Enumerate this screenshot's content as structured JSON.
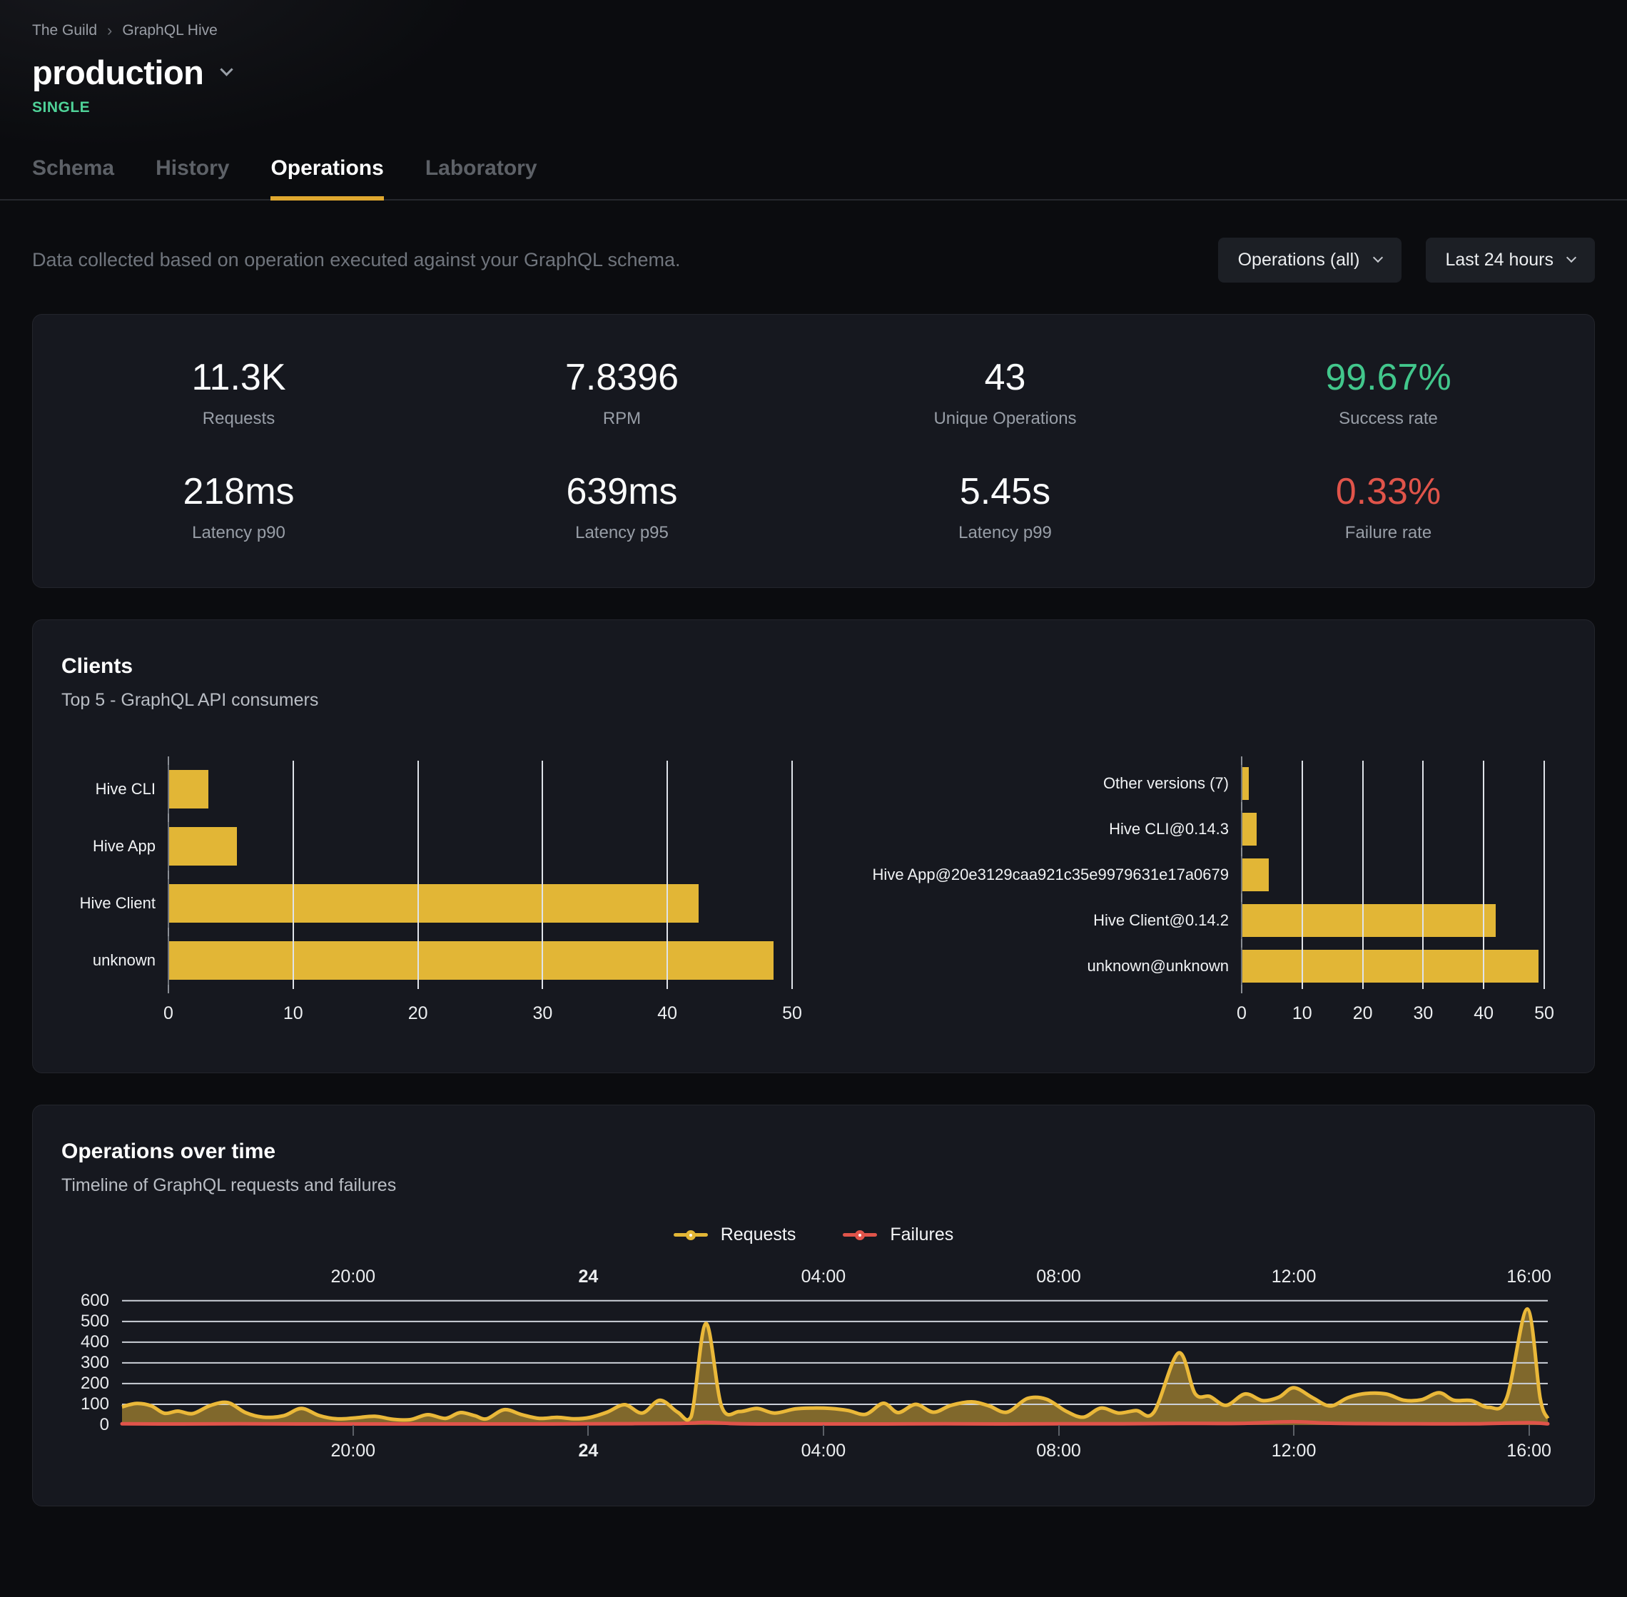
{
  "breadcrumb": {
    "org": "The Guild",
    "separator": "›",
    "project": "GraphQL Hive"
  },
  "target": {
    "name": "production",
    "badge": "SINGLE"
  },
  "tabs": [
    {
      "label": "Schema",
      "active": false
    },
    {
      "label": "History",
      "active": false
    },
    {
      "label": "Operations",
      "active": true
    },
    {
      "label": "Laboratory",
      "active": false
    }
  ],
  "toolbar": {
    "description": "Data collected based on operation executed against your GraphQL schema.",
    "filters": [
      {
        "label": "Operations (all)"
      },
      {
        "label": "Last 24 hours"
      }
    ]
  },
  "stats": [
    {
      "value": "11.3K",
      "label": "Requests",
      "color": "#fafbfc"
    },
    {
      "value": "7.8396",
      "label": "RPM",
      "color": "#fafbfc"
    },
    {
      "value": "43",
      "label": "Unique Operations",
      "color": "#fafbfc"
    },
    {
      "value": "99.67%",
      "label": "Success rate",
      "color": "#42c78c"
    },
    {
      "value": "218ms",
      "label": "Latency p90",
      "color": "#fafbfc"
    },
    {
      "value": "639ms",
      "label": "Latency p95",
      "color": "#fafbfc"
    },
    {
      "value": "5.45s",
      "label": "Latency p99",
      "color": "#fafbfc"
    },
    {
      "value": "0.33%",
      "label": "Failure rate",
      "color": "#e0544a"
    }
  ],
  "clients_card": {
    "title": "Clients",
    "subtitle": "Top 5 - GraphQL API consumers"
  },
  "operations_card": {
    "title": "Operations over time",
    "subtitle": "Timeline of GraphQL requests and failures",
    "legend": [
      {
        "label": "Requests",
        "color": "#e2b636"
      },
      {
        "label": "Failures",
        "color": "#e0544a"
      }
    ]
  },
  "colors": {
    "accent_amber": "#e2b636",
    "success_green": "#42c78c",
    "failure_red": "#e0544a",
    "badge_green": "#4fd298"
  },
  "chart_data": [
    {
      "id": "clients_by_name",
      "type": "bar",
      "orientation": "horizontal",
      "categories": [
        "Hive CLI",
        "Hive App",
        "Hive Client",
        "unknown"
      ],
      "values": [
        3.2,
        5.5,
        42.5,
        48.5
      ],
      "xlim": [
        0,
        50
      ],
      "xticks": [
        0,
        10,
        20,
        30,
        40,
        50
      ],
      "bar_color": "#e2b636",
      "grid": true
    },
    {
      "id": "clients_by_version",
      "type": "bar",
      "orientation": "horizontal",
      "categories": [
        "Other versions (7)",
        "Hive CLI@0.14.3",
        "Hive App@20e3129caa921c35e9979631e17a0679",
        "Hive Client@0.14.2",
        "unknown@unknown"
      ],
      "values": [
        1.2,
        2.5,
        4.5,
        42,
        49
      ],
      "xlim": [
        0,
        50
      ],
      "xticks": [
        0,
        10,
        20,
        30,
        40,
        50
      ],
      "bar_color": "#e2b636",
      "grid": true
    },
    {
      "id": "operations_over_time",
      "type": "area",
      "title": "Operations over time",
      "x_domain": [
        0,
        24.25
      ],
      "ylim": [
        0,
        620
      ],
      "yticks": [
        0,
        100,
        200,
        300,
        400,
        500,
        600
      ],
      "xticks": [
        {
          "label": "20:00",
          "x": 3.93,
          "bold": false
        },
        {
          "label": "24",
          "x": 7.93,
          "bold": true
        },
        {
          "label": "04:00",
          "x": 11.93,
          "bold": false
        },
        {
          "label": "08:00",
          "x": 15.93,
          "bold": false
        },
        {
          "label": "12:00",
          "x": 19.93,
          "bold": false
        },
        {
          "label": "16:00",
          "x": 23.93,
          "bold": false
        }
      ],
      "grid": true,
      "legend_position": "top-center",
      "series": [
        {
          "name": "Requests",
          "color": "#eab839",
          "fill": "rgba(234,184,57,0.5)",
          "points": [
            [
              0,
              88
            ],
            [
              0.25,
              104
            ],
            [
              0.5,
              92
            ],
            [
              0.72,
              57
            ],
            [
              0.95,
              67
            ],
            [
              1.2,
              55
            ],
            [
              1.5,
              94
            ],
            [
              1.8,
              108
            ],
            [
              2.1,
              60
            ],
            [
              2.4,
              38
            ],
            [
              2.75,
              45
            ],
            [
              3.05,
              80
            ],
            [
              3.35,
              46
            ],
            [
              3.65,
              30
            ],
            [
              3.95,
              34
            ],
            [
              4.3,
              42
            ],
            [
              4.6,
              28
            ],
            [
              4.9,
              26
            ],
            [
              5.2,
              50
            ],
            [
              5.5,
              32
            ],
            [
              5.75,
              60
            ],
            [
              6.0,
              45
            ],
            [
              6.2,
              30
            ],
            [
              6.5,
              74
            ],
            [
              6.8,
              50
            ],
            [
              7.1,
              32
            ],
            [
              7.4,
              37
            ],
            [
              7.7,
              30
            ],
            [
              7.95,
              36
            ],
            [
              8.25,
              62
            ],
            [
              8.55,
              98
            ],
            [
              8.85,
              58
            ],
            [
              9.15,
              120
            ],
            [
              9.45,
              62
            ],
            [
              9.68,
              40
            ],
            [
              9.93,
              490
            ],
            [
              10.2,
              88
            ],
            [
              10.5,
              65
            ],
            [
              10.8,
              80
            ],
            [
              11.1,
              58
            ],
            [
              11.45,
              78
            ],
            [
              11.75,
              82
            ],
            [
              12.05,
              80
            ],
            [
              12.35,
              70
            ],
            [
              12.65,
              52
            ],
            [
              12.95,
              105
            ],
            [
              13.2,
              60
            ],
            [
              13.5,
              100
            ],
            [
              13.8,
              62
            ],
            [
              14.1,
              95
            ],
            [
              14.45,
              112
            ],
            [
              14.75,
              92
            ],
            [
              15.05,
              62
            ],
            [
              15.4,
              128
            ],
            [
              15.72,
              125
            ],
            [
              16.05,
              68
            ],
            [
              16.35,
              38
            ],
            [
              16.65,
              82
            ],
            [
              16.95,
              58
            ],
            [
              17.25,
              70
            ],
            [
              17.55,
              62
            ],
            [
              17.97,
              348
            ],
            [
              18.25,
              152
            ],
            [
              18.5,
              138
            ],
            [
              18.78,
              95
            ],
            [
              19.1,
              150
            ],
            [
              19.4,
              118
            ],
            [
              19.68,
              135
            ],
            [
              19.93,
              180
            ],
            [
              20.25,
              132
            ],
            [
              20.55,
              92
            ],
            [
              20.85,
              132
            ],
            [
              21.15,
              152
            ],
            [
              21.5,
              150
            ],
            [
              21.8,
              120
            ],
            [
              22.1,
              122
            ],
            [
              22.4,
              156
            ],
            [
              22.65,
              120
            ],
            [
              22.95,
              118
            ],
            [
              23.25,
              85
            ],
            [
              23.55,
              130
            ],
            [
              23.9,
              560
            ],
            [
              24.12,
              130
            ],
            [
              24.25,
              32
            ]
          ]
        },
        {
          "name": "Failures",
          "color": "#e0544a",
          "fill": "none",
          "points": [
            [
              0,
              6
            ],
            [
              1,
              5
            ],
            [
              2,
              6
            ],
            [
              3,
              5
            ],
            [
              4,
              5
            ],
            [
              5,
              5
            ],
            [
              6,
              5
            ],
            [
              7,
              5
            ],
            [
              8,
              6
            ],
            [
              9.5,
              8
            ],
            [
              9.93,
              13
            ],
            [
              10.4,
              7
            ],
            [
              11,
              5
            ],
            [
              12,
              5
            ],
            [
              13,
              5
            ],
            [
              14,
              6
            ],
            [
              15,
              5
            ],
            [
              16,
              6
            ],
            [
              17,
              6
            ],
            [
              18,
              8
            ],
            [
              19,
              8
            ],
            [
              19.9,
              16
            ],
            [
              20.4,
              10
            ],
            [
              21,
              7
            ],
            [
              22,
              6
            ],
            [
              23,
              6
            ],
            [
              23.9,
              11
            ],
            [
              24.25,
              6
            ]
          ]
        }
      ]
    }
  ]
}
